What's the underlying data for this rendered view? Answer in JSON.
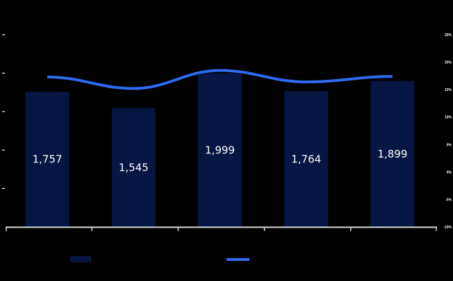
{
  "chart_data": {
    "type": "bar",
    "title": "",
    "xlabel": "",
    "ylabel": "",
    "categories": [
      "",
      "",
      "",
      "",
      ""
    ],
    "series": [
      {
        "name": "",
        "type": "bar",
        "axis": "left",
        "color": "#041641",
        "values": [
          1757,
          1545,
          1999,
          1764,
          1899
        ],
        "labels": [
          "1,757",
          "1,545",
          "1,999",
          "1,764",
          "1,899"
        ]
      },
      {
        "name": "",
        "type": "line",
        "axis": "right",
        "color": "#2f6bf0",
        "values": [
          17.3,
          15.2,
          18.5,
          16.4,
          17.4
        ],
        "unit": "%"
      }
    ],
    "ylim": [
      0,
      2500
    ],
    "y_ticks": [
      0,
      500,
      1000,
      1500,
      2000,
      2500
    ],
    "y2lim": [
      -10,
      25
    ],
    "y2_ticks": [
      "25%",
      "20%",
      "15%",
      "10%",
      "5%",
      "0%",
      "-5%",
      "-10%"
    ],
    "grid": false,
    "legend_position": "bottom",
    "background": "#000000",
    "axis_color": "#d9d9d9"
  },
  "legend": {
    "bar_label": "",
    "line_label": ""
  }
}
